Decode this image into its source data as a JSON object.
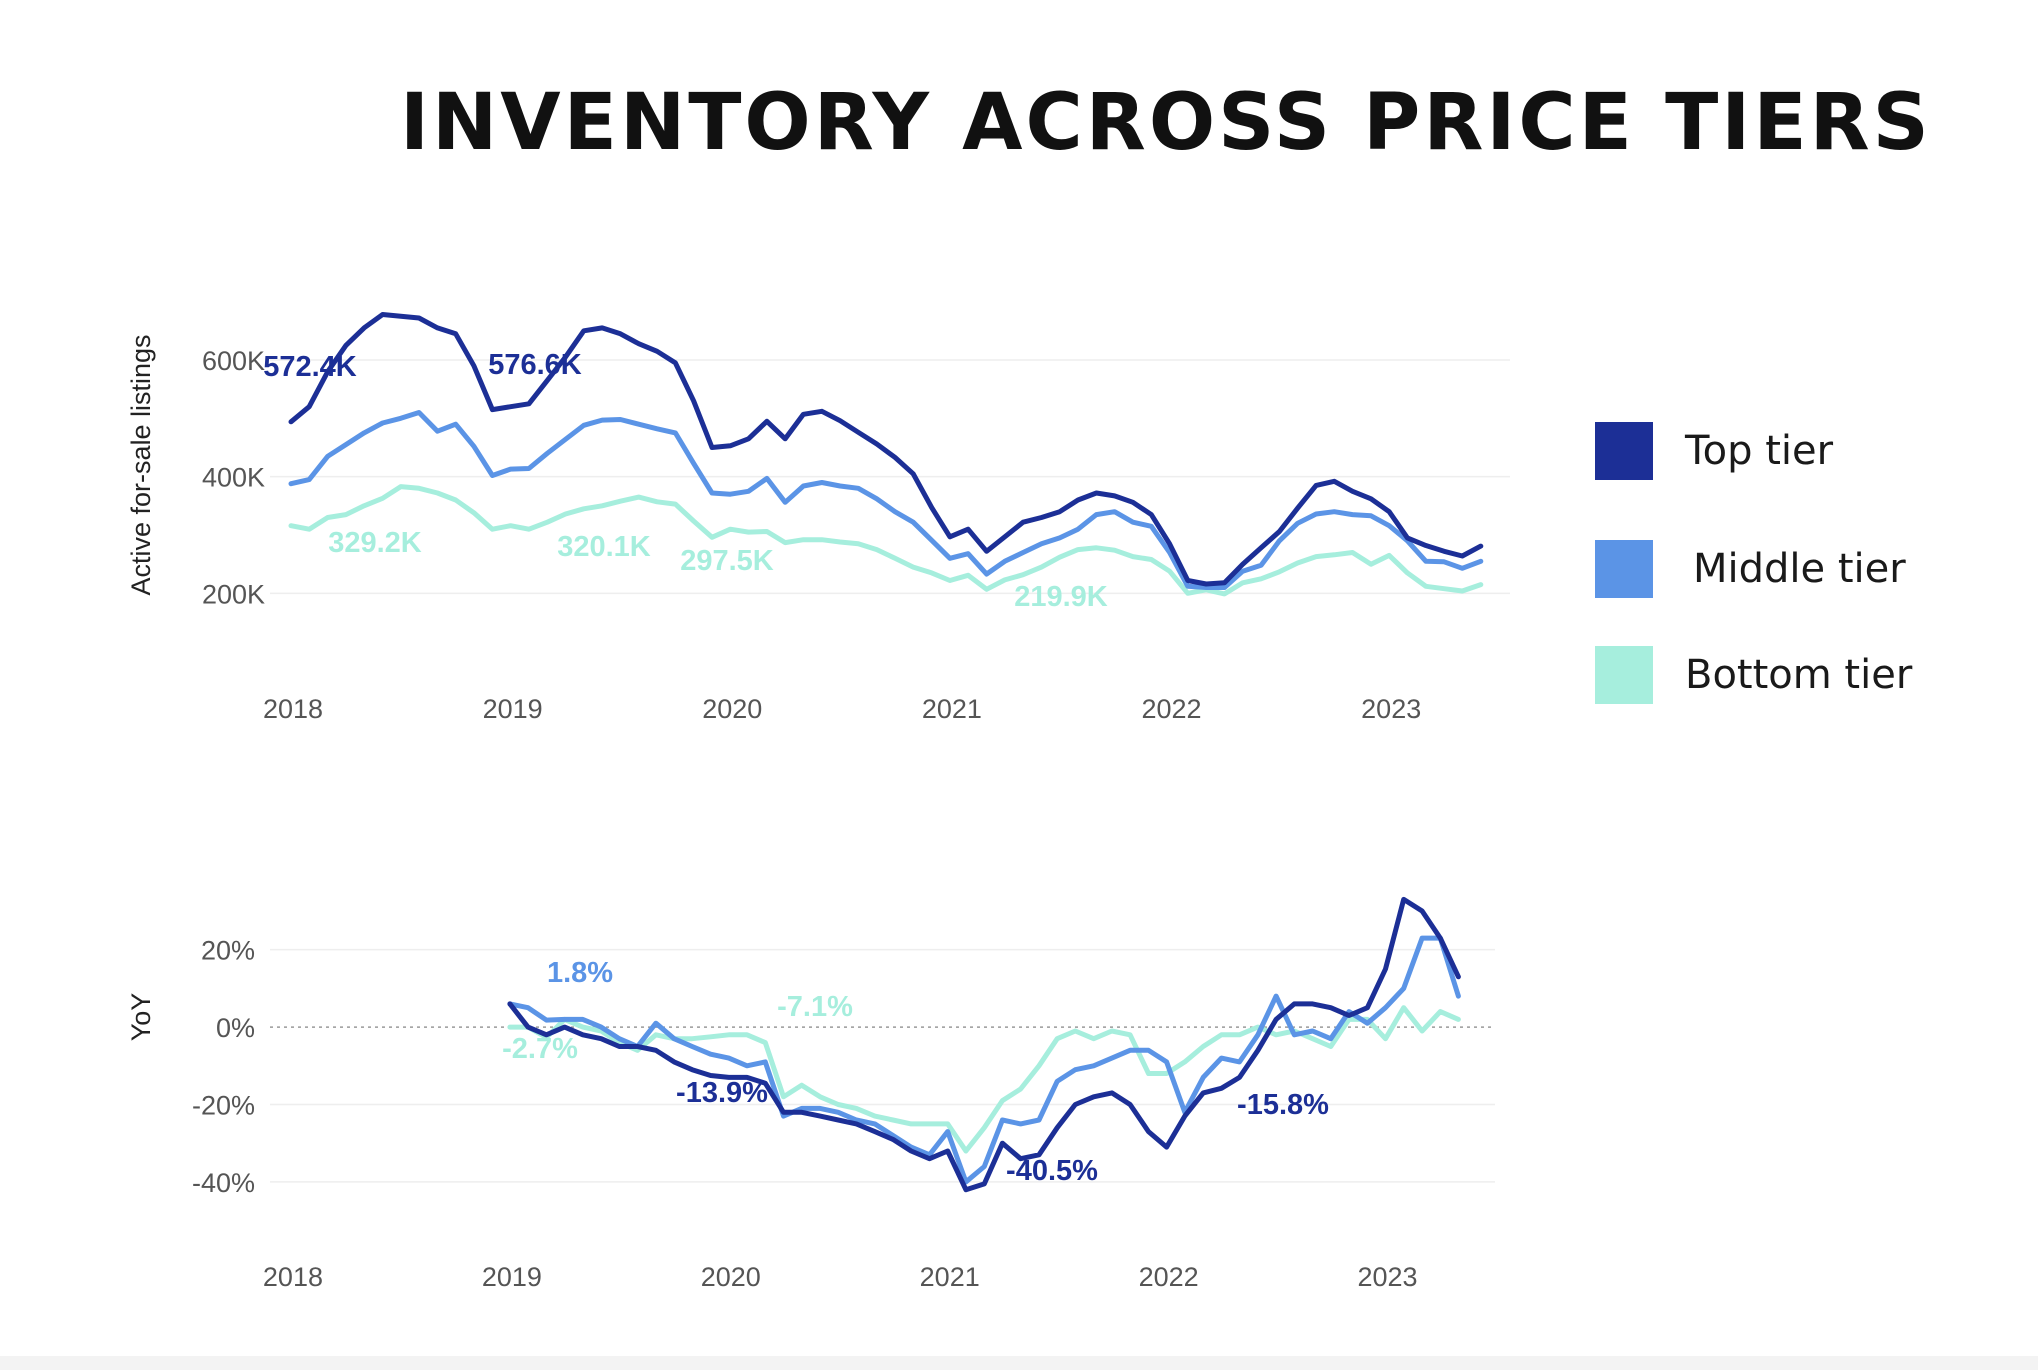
{
  "title": "INVENTORY ACROSS PRICE TIERS",
  "legend": [
    {
      "label": "Top tier",
      "color": "#1c2f96"
    },
    {
      "label": "Middle tier",
      "color": "#5b94e6"
    },
    {
      "label": "Bottom tier",
      "color": "#a6eedd"
    }
  ],
  "chart_data": [
    {
      "type": "line",
      "ylabel": "Active for-sale listings",
      "xlabel": "",
      "x_ticks": [
        "2018",
        "2019",
        "2020",
        "2021",
        "2022",
        "2023"
      ],
      "y_ticks": [
        "600K",
        "400K",
        "200K"
      ],
      "ylim": [
        120000,
        720000
      ],
      "xlim": [
        2017.95,
        2023.55
      ],
      "grid": true,
      "legend_position": "right",
      "x": [
        2018.0,
        2018.083,
        2018.167,
        2018.25,
        2018.333,
        2018.417,
        2018.5,
        2018.583,
        2018.667,
        2018.75,
        2018.833,
        2018.917,
        2019.0,
        2019.083,
        2019.167,
        2019.25,
        2019.333,
        2019.417,
        2019.5,
        2019.583,
        2019.667,
        2019.75,
        2019.833,
        2019.917,
        2020.0,
        2020.083,
        2020.167,
        2020.25,
        2020.333,
        2020.417,
        2020.5,
        2020.583,
        2020.667,
        2020.75,
        2020.833,
        2020.917,
        2021.0,
        2021.083,
        2021.167,
        2021.25,
        2021.333,
        2021.417,
        2021.5,
        2021.583,
        2021.667,
        2021.75,
        2021.833,
        2021.917,
        2022.0,
        2022.083,
        2022.167,
        2022.25,
        2022.333,
        2022.417,
        2022.5,
        2022.583,
        2022.667,
        2022.75,
        2022.833,
        2022.917,
        2023.0,
        2023.083,
        2023.167,
        2023.25,
        2023.333,
        2023.417
      ],
      "series": [
        {
          "name": "Top tier",
          "color": "#1c2f96",
          "values": [
            494000,
            520000,
            580000,
            625000,
            655000,
            678000,
            675000,
            672000,
            655000,
            645000,
            590000,
            515000,
            520000,
            525000,
            565000,
            605000,
            650000,
            655000,
            645000,
            628000,
            615000,
            595000,
            530000,
            450000,
            453000,
            465000,
            495000,
            465000,
            507000,
            512000,
            496000,
            476000,
            456000,
            433000,
            405000,
            347000,
            297000,
            310000,
            272000,
            297000,
            322000,
            330000,
            340000,
            360000,
            372000,
            367000,
            356000,
            335000,
            285000,
            222000,
            216000,
            218000,
            250000,
            278000,
            306000,
            346000,
            385000,
            392000,
            375000,
            362000,
            340000,
            295000,
            282000,
            272000,
            264000,
            281000
          ]
        },
        {
          "name": "Middle tier",
          "color": "#5b94e6",
          "values": [
            388000,
            395000,
            435000,
            455000,
            475000,
            492000,
            500000,
            510000,
            478000,
            490000,
            452000,
            402000,
            413000,
            414000,
            440000,
            464000,
            488000,
            497000,
            498000,
            490000,
            482000,
            475000,
            423000,
            372000,
            370000,
            375000,
            397000,
            356000,
            384000,
            390000,
            384000,
            380000,
            362000,
            340000,
            322000,
            291000,
            260000,
            268000,
            233000,
            255000,
            270000,
            285000,
            295000,
            310000,
            335000,
            340000,
            322000,
            315000,
            270000,
            212000,
            210000,
            210000,
            238000,
            248000,
            290000,
            320000,
            336000,
            340000,
            335000,
            333000,
            316000,
            290000,
            255000,
            254000,
            243000,
            255000
          ]
        },
        {
          "name": "Bottom tier",
          "color": "#a6eedd",
          "values": [
            316000,
            310000,
            330000,
            335000,
            350000,
            363000,
            383000,
            380000,
            372000,
            360000,
            338000,
            310000,
            316000,
            310000,
            322000,
            336000,
            345000,
            350000,
            358000,
            365000,
            357000,
            353000,
            324000,
            296000,
            310000,
            305000,
            306000,
            287000,
            292000,
            292000,
            288000,
            285000,
            275000,
            260000,
            245000,
            235000,
            222000,
            231000,
            207000,
            223000,
            232000,
            245000,
            262000,
            275000,
            278000,
            274000,
            263000,
            258000,
            238000,
            200000,
            206000,
            199000,
            218000,
            225000,
            237000,
            252000,
            263000,
            266000,
            270000,
            250000,
            265000,
            235000,
            212000,
            208000,
            204000,
            215000
          ]
        }
      ],
      "annotations": [
        {
          "text": "572.4K",
          "series": "Top tier"
        },
        {
          "text": "576.6K",
          "series": "Top tier"
        },
        {
          "text": "329.2K",
          "series": "Bottom tier"
        },
        {
          "text": "320.1K",
          "series": "Bottom tier"
        },
        {
          "text": "297.5K",
          "series": "Bottom tier"
        },
        {
          "text": "219.9K",
          "series": "Bottom tier"
        }
      ]
    },
    {
      "type": "line",
      "ylabel": "YoY",
      "xlabel": "",
      "x_ticks": [
        "2018",
        "2019",
        "2020",
        "2021",
        "2022",
        "2023"
      ],
      "y_ticks": [
        "20%",
        "0%",
        "-20%",
        "-40%"
      ],
      "ylim": [
        -55,
        38
      ],
      "xlim": [
        2017.95,
        2023.5
      ],
      "grid": true,
      "zero_line": "dotted",
      "x": [
        2019.0,
        2019.083,
        2019.167,
        2019.25,
        2019.333,
        2019.417,
        2019.5,
        2019.583,
        2019.667,
        2019.75,
        2019.833,
        2019.917,
        2020.0,
        2020.083,
        2020.167,
        2020.25,
        2020.333,
        2020.417,
        2020.5,
        2020.583,
        2020.667,
        2020.75,
        2020.833,
        2020.917,
        2021.0,
        2021.083,
        2021.167,
        2021.25,
        2021.333,
        2021.417,
        2021.5,
        2021.583,
        2021.667,
        2021.75,
        2021.833,
        2021.917,
        2022.0,
        2022.083,
        2022.167,
        2022.25,
        2022.333,
        2022.417,
        2022.5,
        2022.583,
        2022.667,
        2022.75,
        2022.833,
        2022.917,
        2023.0,
        2023.083,
        2023.167,
        2023.25,
        2023.333
      ],
      "series": [
        {
          "name": "Top tier",
          "color": "#1c2f96",
          "values": [
            6,
            0,
            -2,
            0,
            -2,
            -3,
            -5,
            -5,
            -6,
            -9,
            -11,
            -12.5,
            -13,
            -13,
            -14.5,
            -22,
            -22,
            -23,
            -24,
            -25,
            -27,
            -29,
            -32,
            -34,
            -32,
            -42,
            -40.5,
            -30,
            -34,
            -33,
            -26,
            -20,
            -18,
            -17,
            -20,
            -27,
            -31,
            -23,
            -17,
            -15.8,
            -13,
            -6,
            2,
            6,
            6,
            5,
            3,
            5,
            15,
            33,
            30,
            23,
            13
          ]
        },
        {
          "name": "Middle tier",
          "color": "#5b94e6",
          "values": [
            6,
            5,
            1.8,
            2,
            2,
            0,
            -3,
            -5,
            1,
            -3,
            -5,
            -7,
            -8,
            -10,
            -9,
            -23,
            -21,
            -21,
            -22,
            -24,
            -25,
            -28,
            -31,
            -33,
            -27,
            -40,
            -36,
            -24,
            -25,
            -24,
            -14,
            -11,
            -10,
            -8,
            -6,
            -6,
            -9,
            -22,
            -13,
            -8,
            -9,
            -2,
            8,
            -2,
            -1,
            -3,
            4,
            1,
            5,
            10,
            23,
            23,
            8
          ]
        },
        {
          "name": "Bottom tier",
          "color": "#a6eedd",
          "values": [
            0,
            0,
            -2.7,
            2,
            0,
            -1,
            -4,
            -6,
            -2,
            -3,
            -3,
            -2.5,
            -2,
            -2,
            -4,
            -18,
            -15,
            -18,
            -20,
            -21,
            -23,
            -24,
            -25,
            -25,
            -25,
            -32,
            -26,
            -19,
            -16,
            -10,
            -3,
            -1,
            -3,
            -1,
            -2,
            -12,
            -12,
            -9,
            -5,
            -2,
            -2,
            0,
            -2,
            -1,
            -3,
            -5,
            2,
            2,
            -3,
            5,
            -1,
            4,
            2
          ]
        }
      ],
      "annotations": [
        {
          "text": "1.8%",
          "series": "Middle tier"
        },
        {
          "text": "-2.7%",
          "series": "Bottom tier"
        },
        {
          "text": "-7.1%",
          "series": "Bottom tier"
        },
        {
          "text": "-13.9%",
          "series": "Top tier"
        },
        {
          "text": "-40.5%",
          "series": "Top tier"
        },
        {
          "text": "-15.8%",
          "series": "Top tier"
        }
      ]
    }
  ]
}
